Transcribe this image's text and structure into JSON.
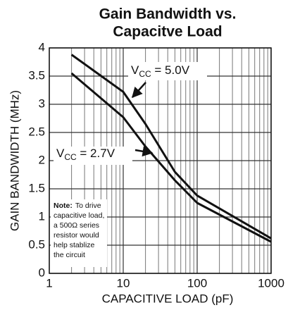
{
  "chart_data": {
    "type": "line",
    "title": [
      "Gain Bandwidth vs.",
      "Capacitve Load"
    ],
    "x_label": "CAPACITIVE LOAD (pF)",
    "y_label": "GAIN BANDWIDTH (MHz)",
    "x_scale": "log",
    "xlim": [
      1,
      1000
    ],
    "xticks": [
      1,
      10,
      100,
      1000
    ],
    "x_minor_ticks": [
      2,
      3,
      4,
      5,
      6,
      7,
      8,
      9,
      20,
      30,
      40,
      50,
      60,
      70,
      80,
      90,
      200,
      300,
      400,
      500,
      600,
      700,
      800,
      900
    ],
    "ylim": [
      0,
      4
    ],
    "yticks": [
      0,
      0.5,
      1,
      1.5,
      2,
      2.5,
      3,
      3.5,
      4
    ],
    "grid": true,
    "x": [
      2,
      10,
      20,
      50,
      100,
      1000
    ],
    "series": [
      {
        "color": "#111111",
        "values": [
          3.88,
          3.22,
          2.65,
          1.8,
          1.38,
          0.62
        ]
      },
      {
        "color": "#111111",
        "values": [
          3.55,
          2.77,
          2.25,
          1.65,
          1.25,
          0.56
        ]
      }
    ],
    "annotations": [
      {
        "prefix": "V",
        "subscript": "CC",
        "suffix": " = 5.0V"
      },
      {
        "prefix": "V",
        "subscript": "CC",
        "suffix": " = 2.7V"
      }
    ],
    "note": {
      "label": "Note:",
      "lines": [
        "To drive",
        "capacitive load,",
        "a 500Ω series",
        "resistor would",
        "help stablize",
        "the circuit"
      ]
    }
  }
}
